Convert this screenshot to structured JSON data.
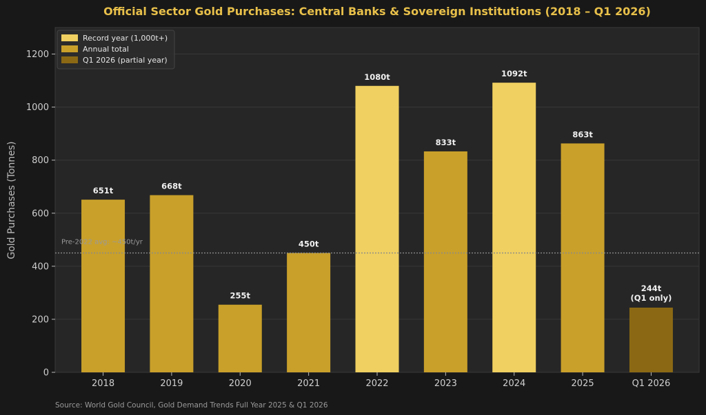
{
  "chart_data": {
    "type": "bar",
    "title": "Official Sector Gold Purchases: Central Banks & Sovereign Institutions (2018 – Q1 2026)",
    "ylabel": "Gold Purchases (Tonnes)",
    "xlabel": "",
    "ylim": [
      0,
      1300
    ],
    "yticks": [
      0,
      200,
      400,
      600,
      800,
      1000,
      1200
    ],
    "grid": true,
    "legend_position": "top-left",
    "categories": [
      "2018",
      "2019",
      "2020",
      "2021",
      "2022",
      "2023",
      "2024",
      "2025",
      "Q1 2026"
    ],
    "values": [
      651,
      668,
      255,
      450,
      1080,
      833,
      1092,
      863,
      244
    ],
    "bar_types": [
      "annual",
      "annual",
      "annual",
      "annual",
      "record",
      "annual",
      "record",
      "annual",
      "partial"
    ],
    "labels": [
      "651t",
      "668t",
      "255t",
      "450t",
      "1080t",
      "833t",
      "1092t",
      "863t",
      "244t"
    ],
    "sublabels": [
      "",
      "",
      "",
      "",
      "",
      "",
      "",
      "",
      "(Q1 only)"
    ],
    "legend": [
      {
        "key": "record",
        "label": "Record year (1,000t+)",
        "color": "#f0d060"
      },
      {
        "key": "annual",
        "label": "Annual total",
        "color": "#c9a02a"
      },
      {
        "key": "partial",
        "label": "Q1 2026 (partial year)",
        "color": "#8b6914"
      }
    ],
    "reference_line": {
      "value": 450,
      "label": "Pre-2022 avg: ~450t/yr"
    },
    "colors": {
      "title": "#e8c04a",
      "plot_bg": "#262626",
      "page_bg": "#181818",
      "grid": "#383838",
      "ref_line": "#8a8a8a"
    }
  },
  "source": "Source: World Gold Council, Gold Demand Trends Full Year 2025 & Q1 2026"
}
